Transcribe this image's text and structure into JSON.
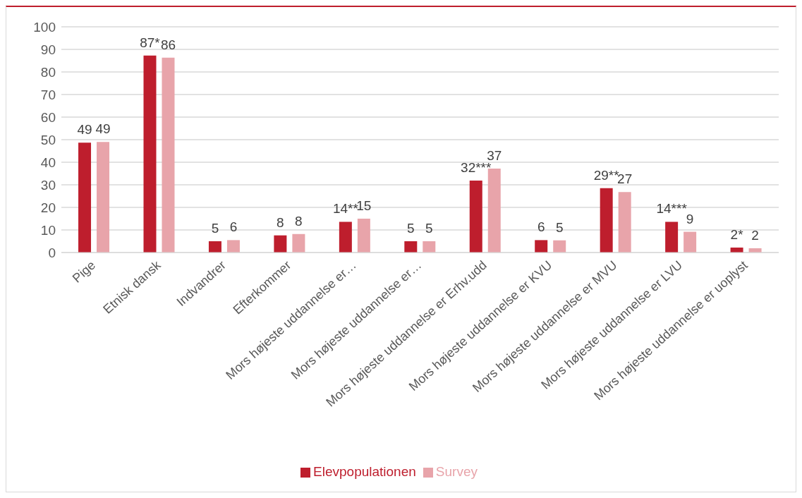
{
  "chart_data": {
    "type": "bar",
    "categories": [
      "Pige",
      "Etnisk dansk",
      "Indvandrer",
      "Efterkommer",
      "Mors højeste uddannelse er…",
      "Mors højeste uddannelse er…",
      "Mors højeste uddannelse er Erhv.udd",
      "Mors højeste uddannelse er KVU",
      "Mors højeste uddannelse er MVU",
      "Mors højeste uddannelse er LVU",
      "Mors højeste uddannelse er uoplyst"
    ],
    "series": [
      {
        "name": "Elevpopulationen",
        "color": "#be1e2d",
        "values": [
          48.7,
          87.3,
          5,
          7.6,
          13.6,
          5,
          31.9,
          5.5,
          28.5,
          13.6,
          2.2
        ],
        "value_labels": [
          "49",
          "87*",
          "5",
          "8",
          "14**",
          "5",
          "32***",
          "6",
          "29**",
          "14***",
          "2*"
        ]
      },
      {
        "name": "Survey",
        "color": "#e8a4aa",
        "values": [
          49,
          86.3,
          5.5,
          8.2,
          15,
          5,
          37.2,
          5.4,
          26.8,
          9.2,
          1.9
        ],
        "value_labels": [
          "49",
          "86",
          "6",
          "8",
          "15",
          "5",
          "37",
          "5",
          "27",
          "9",
          "2"
        ]
      }
    ],
    "ylim": [
      0,
      100
    ],
    "yticks": [
      0,
      10,
      20,
      30,
      40,
      50,
      60,
      70,
      80,
      90,
      100
    ],
    "grid": "y",
    "legend": "bottom"
  }
}
